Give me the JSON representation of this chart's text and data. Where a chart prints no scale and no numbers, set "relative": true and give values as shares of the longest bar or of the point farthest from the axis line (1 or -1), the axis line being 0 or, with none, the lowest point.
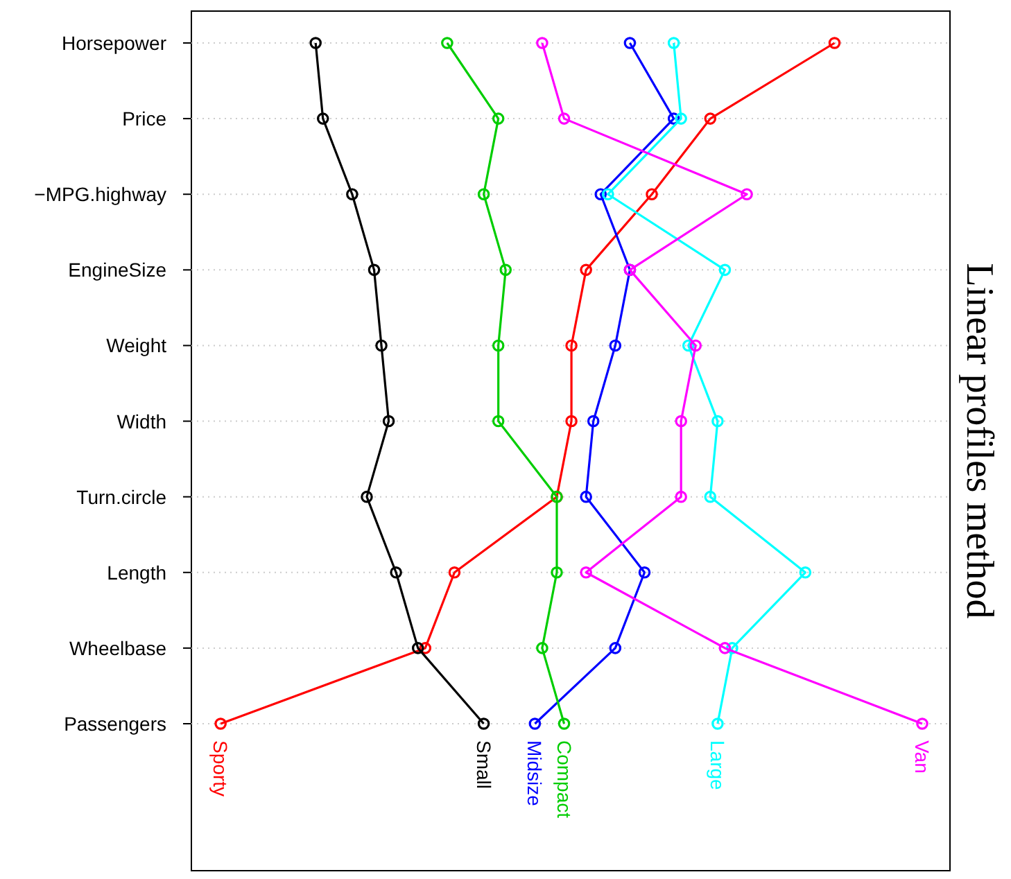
{
  "chart_data": {
    "type": "line",
    "orientation": "horizontal",
    "relative": true,
    "title": "Linear profiles method",
    "categories": [
      "Horsepower",
      "Price",
      "−MPG.highway",
      "EngineSize",
      "Weight",
      "Width",
      "Turn.circle",
      "Length",
      "Wheelbase",
      "Passengers"
    ],
    "marker": "circle",
    "grid": "y",
    "series": [
      {
        "name": "Sporty",
        "color": "#ff0000",
        "values": [
          0.88,
          0.71,
          0.63,
          0.54,
          0.52,
          0.52,
          0.5,
          0.36,
          0.32,
          0.04
        ]
      },
      {
        "name": "Small",
        "color": "#000000",
        "values": [
          0.17,
          0.18,
          0.22,
          0.25,
          0.26,
          0.27,
          0.24,
          0.28,
          0.31,
          0.4
        ]
      },
      {
        "name": "Midsize",
        "color": "#0000ff",
        "values": [
          0.6,
          0.66,
          0.56,
          0.6,
          0.58,
          0.55,
          0.54,
          0.62,
          0.58,
          0.47
        ]
      },
      {
        "name": "Compact",
        "color": "#00cd00",
        "values": [
          0.35,
          0.42,
          0.4,
          0.43,
          0.42,
          0.42,
          0.5,
          0.5,
          0.48,
          0.51
        ]
      },
      {
        "name": "Large",
        "color": "#00ffff",
        "values": [
          0.66,
          0.67,
          0.57,
          0.73,
          0.68,
          0.72,
          0.71,
          0.84,
          0.74,
          0.72
        ]
      },
      {
        "name": "Van",
        "color": "#ff00ff",
        "values": [
          0.48,
          0.51,
          0.76,
          0.6,
          0.69,
          0.67,
          0.67,
          0.54,
          0.73,
          1
        ]
      }
    ]
  }
}
